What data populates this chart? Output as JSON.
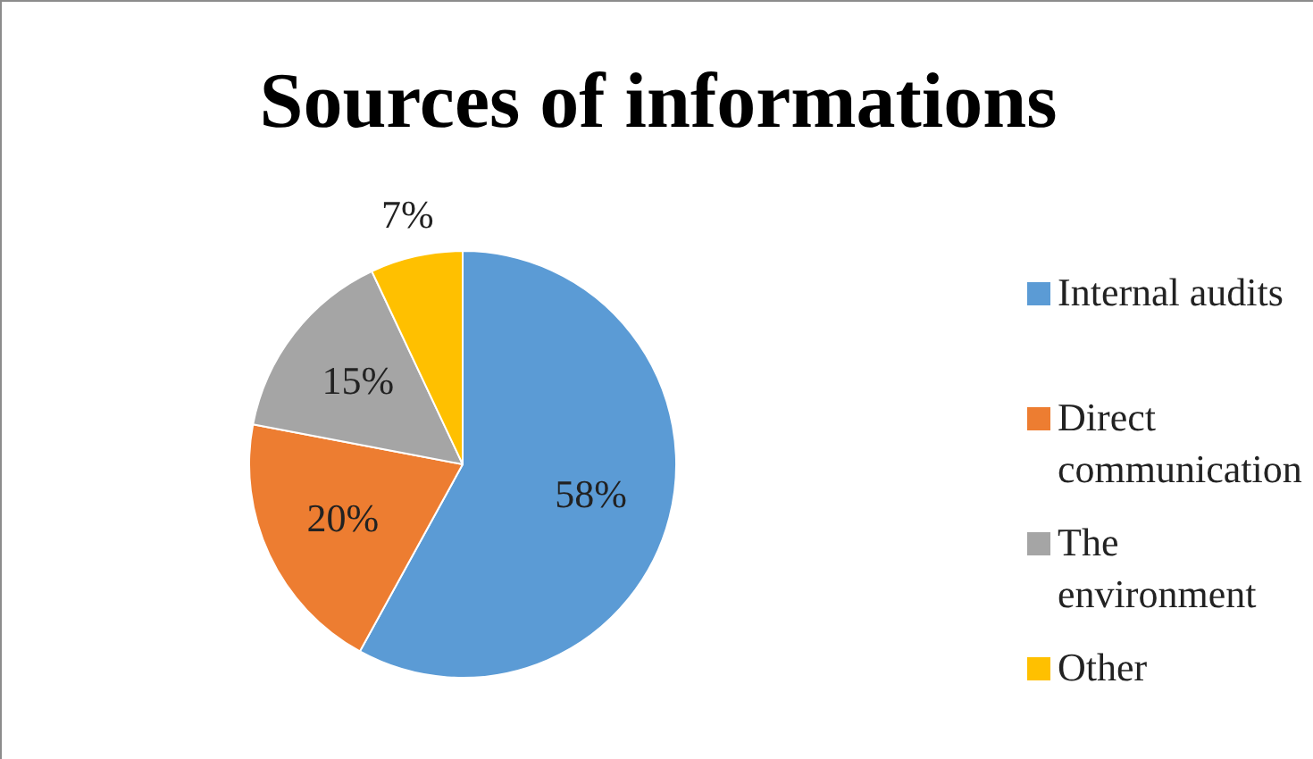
{
  "chart_data": {
    "type": "pie",
    "title": "Sources of informations",
    "categories": [
      "Internal audits",
      "Direct communication",
      "The environment",
      "Other"
    ],
    "values": [
      58,
      20,
      15,
      7
    ],
    "colors": [
      "#5b9bd5",
      "#ed7d31",
      "#a5a5a5",
      "#ffc000"
    ],
    "value_labels": [
      "58%",
      "20%",
      "15%",
      "7%"
    ],
    "legend": "right"
  }
}
